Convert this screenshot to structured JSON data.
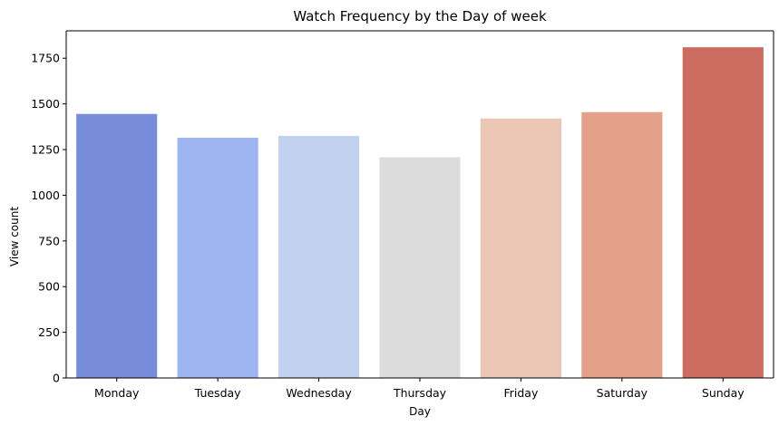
{
  "chart_data": {
    "type": "bar",
    "title": "Watch Frequency by the Day of week",
    "xlabel": "Day",
    "ylabel": "View count",
    "categories": [
      "Monday",
      "Tuesday",
      "Wednesday",
      "Thursday",
      "Friday",
      "Saturday",
      "Sunday"
    ],
    "values": [
      1445,
      1315,
      1325,
      1208,
      1420,
      1455,
      1810
    ],
    "ylim": [
      0,
      1900
    ],
    "yticks": [
      0,
      250,
      500,
      750,
      1000,
      1250,
      1500,
      1750
    ],
    "colors": [
      "#778cdb",
      "#9cb5f1",
      "#c1d1ef",
      "#dcdcdc",
      "#ecc6b4",
      "#e4a089",
      "#cc6b60"
    ],
    "grid": false,
    "legend": "none"
  }
}
